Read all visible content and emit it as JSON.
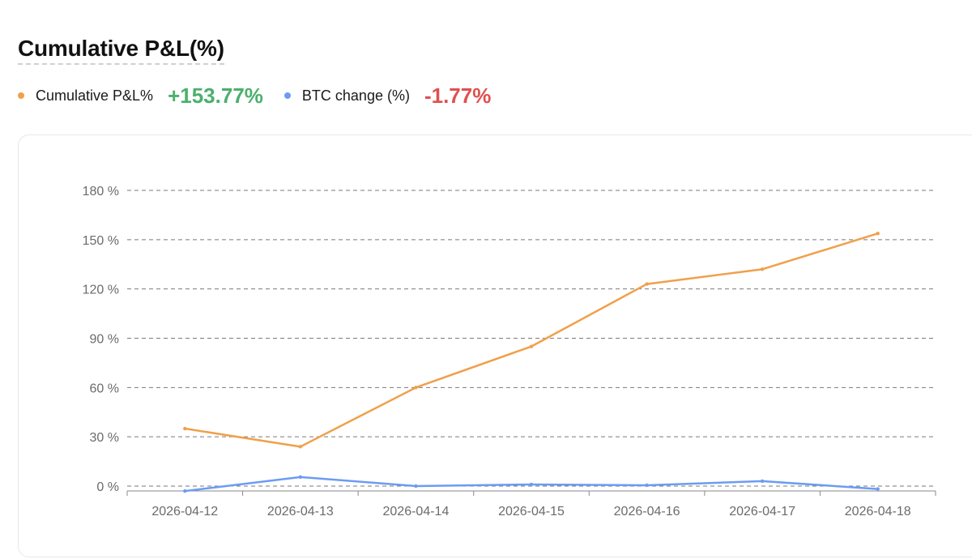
{
  "title": "Cumulative P&L(%)",
  "legend": {
    "pnl": {
      "label": "Cumulative P&L%",
      "value": "+153.77%",
      "dot_color": "#f0a04b",
      "value_color": "#4caf6d"
    },
    "btc": {
      "label": "BTC change (%)",
      "value": "-1.77%",
      "dot_color": "#6c9cf2",
      "value_color": "#e0504e"
    }
  },
  "chart_data": {
    "type": "line",
    "x": [
      "2026-04-12",
      "2026-04-13",
      "2026-04-14",
      "2026-04-15",
      "2026-04-16",
      "2026-04-17",
      "2026-04-18"
    ],
    "series": [
      {
        "name": "Cumulative P&L%",
        "color": "#f0a04b",
        "values": [
          35,
          24,
          60,
          85,
          123,
          132,
          153.77
        ]
      },
      {
        "name": "BTC change (%)",
        "color": "#6c9cf2",
        "values": [
          -3,
          5.5,
          0,
          1,
          0.5,
          3,
          -1.77
        ]
      }
    ],
    "y_ticks": [
      "0 %",
      "30 %",
      "60 %",
      "90 %",
      "120 %",
      "150 %",
      "180 %"
    ],
    "ylim": [
      0,
      180
    ],
    "grid": true
  }
}
